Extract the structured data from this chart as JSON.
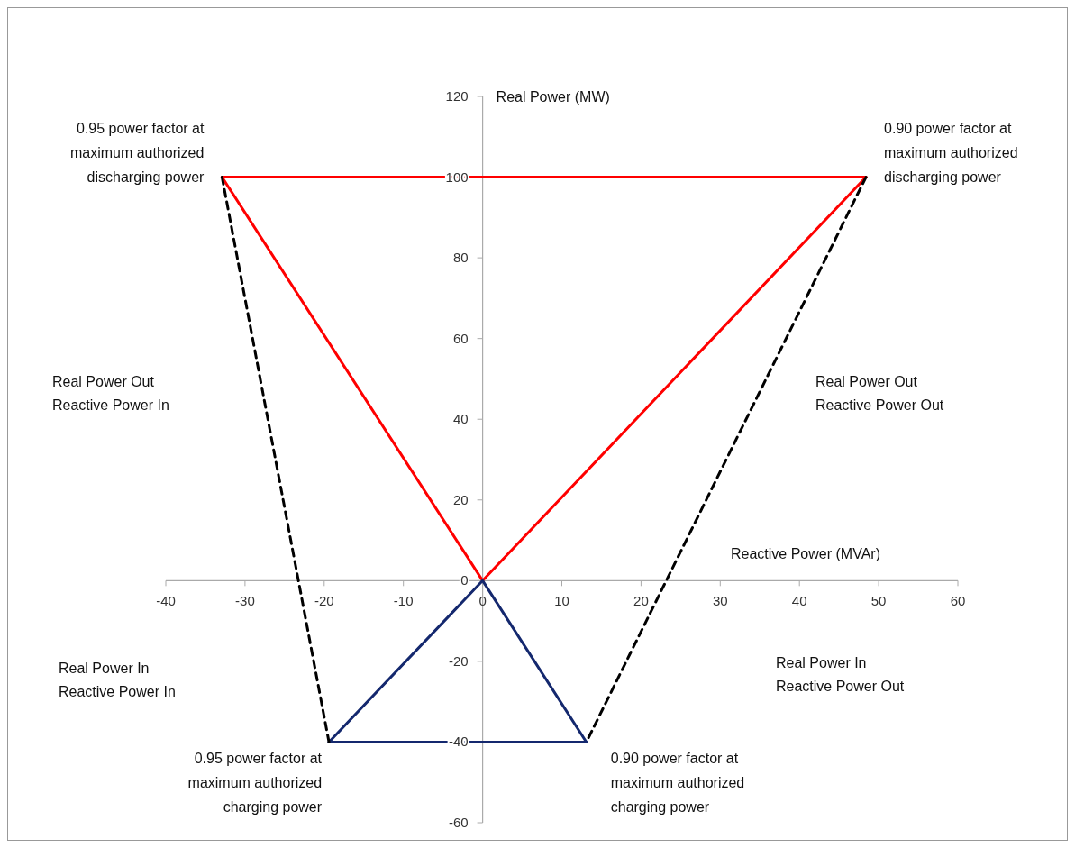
{
  "chart_data": {
    "type": "line",
    "xlabel": "Reactive Power (MVAr)",
    "ylabel": "Real Power (MW)",
    "xlim": [
      -40,
      60
    ],
    "xticks": [
      -40,
      -30,
      -20,
      -10,
      0,
      10,
      20,
      30,
      40,
      50,
      60
    ],
    "ylim": [
      -60,
      120
    ],
    "yticks": [
      -60,
      -40,
      -20,
      0,
      20,
      40,
      60,
      80,
      100,
      120
    ],
    "grid": false,
    "marker": "none",
    "series": [
      {
        "color": "#ff0000",
        "line_style": "solid",
        "x": [
          -32.9,
          0,
          48.4
        ],
        "values": [
          100,
          0,
          100
        ]
      },
      {
        "color": "#ff0000",
        "line_style": "solid",
        "x": [
          -32.9,
          48.4
        ],
        "values": [
          100,
          100
        ]
      },
      {
        "color": "#14286e",
        "line_style": "solid",
        "x": [
          -19.4,
          0,
          13.1
        ],
        "values": [
          -40,
          0,
          -40
        ]
      },
      {
        "color": "#14286e",
        "line_style": "solid",
        "x": [
          -19.4,
          13.1
        ],
        "values": [
          -40,
          -40
        ]
      },
      {
        "color": "#000000",
        "line_style": "dashed",
        "x": [
          -32.9,
          -19.4
        ],
        "values": [
          100,
          -40
        ]
      },
      {
        "color": "#000000",
        "line_style": "dashed",
        "x": [
          48.4,
          13.1
        ],
        "values": [
          100,
          -40
        ]
      }
    ],
    "annotations": [
      {
        "text": "0.95 power factor at maximum authorized discharging power",
        "x": -32.9,
        "y": 100
      },
      {
        "text": "0.90 power factor at maximum authorized discharging power",
        "x": 48.4,
        "y": 100
      },
      {
        "text": "0.95 power factor at maximum authorized charging power",
        "x": -19.4,
        "y": -40
      },
      {
        "text": "0.90 power factor at maximum authorized charging power",
        "x": 13.1,
        "y": -40
      },
      "Real Power Out Reactive Power In",
      "Real Power Out Reactive Power Out",
      "Real Power In Reactive Power In",
      "Real Power In Reactive Power Out"
    ]
  }
}
